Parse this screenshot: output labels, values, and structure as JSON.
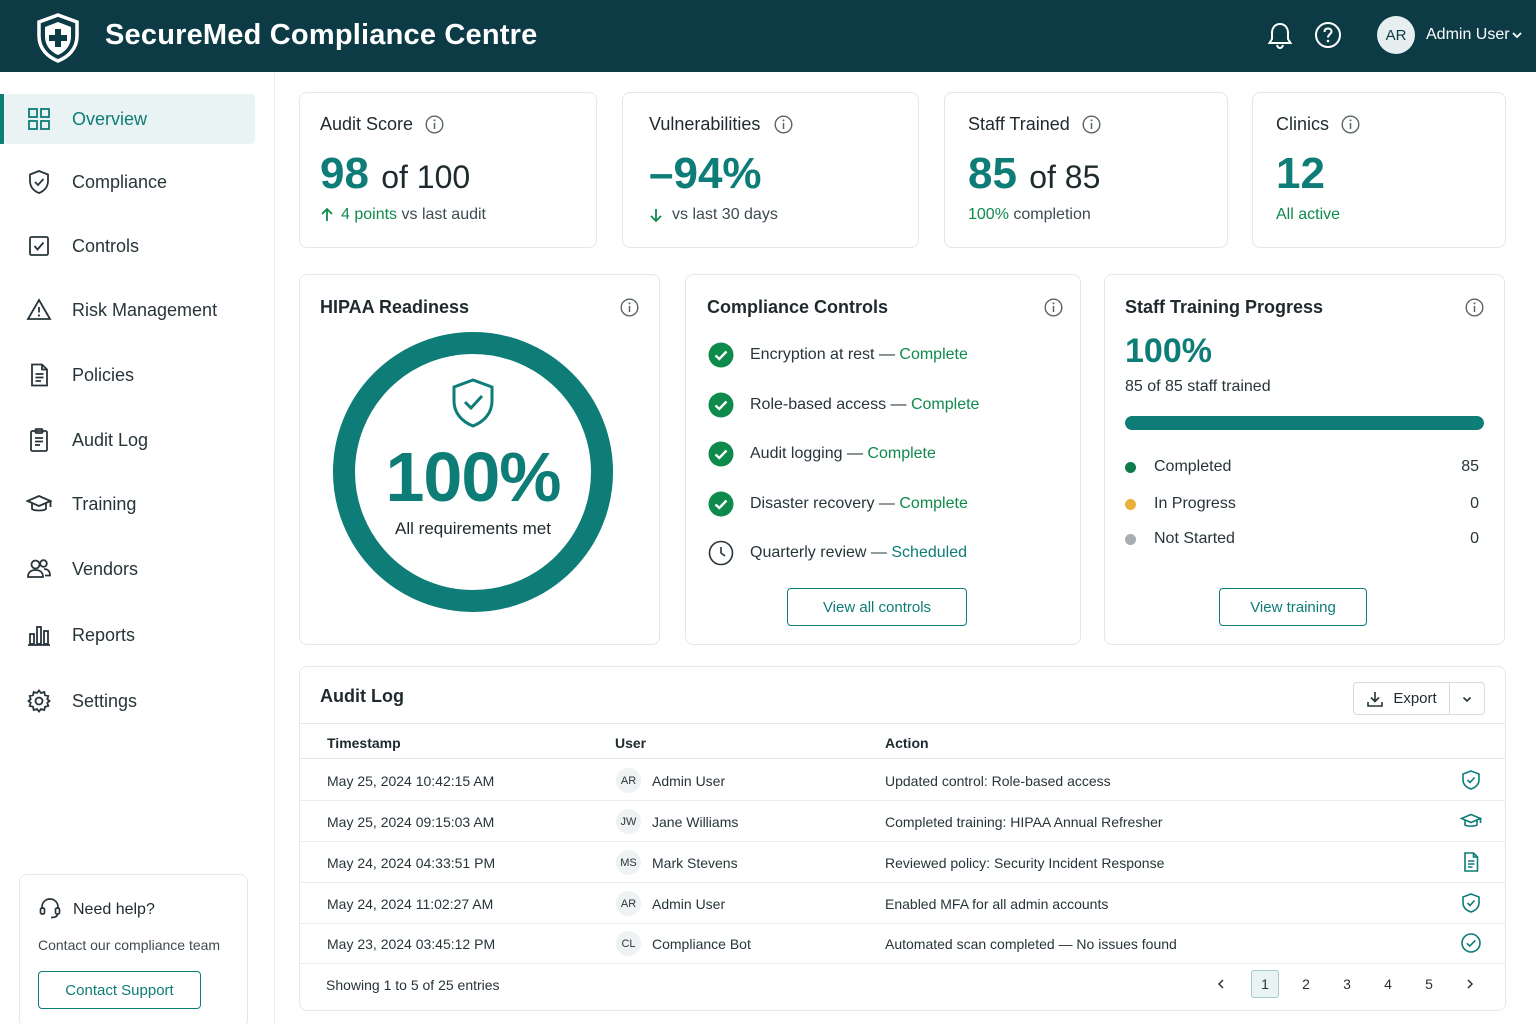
{
  "header": {
    "title": "SecureMed Compliance Centre",
    "user_initials": "AR",
    "user_name": "Admin User"
  },
  "sidebar": {
    "items": [
      {
        "label": "Overview",
        "icon": "grid-icon",
        "active": true
      },
      {
        "label": "Compliance",
        "icon": "shield-check-icon"
      },
      {
        "label": "Controls",
        "icon": "checkbox-icon"
      },
      {
        "label": "Risk Management",
        "icon": "warning-triangle-icon"
      },
      {
        "label": "Policies",
        "icon": "document-icon"
      },
      {
        "label": "Audit Log",
        "icon": "clipboard-icon"
      },
      {
        "label": "Training",
        "icon": "graduation-cap-icon"
      },
      {
        "label": "Vendors",
        "icon": "users-icon"
      },
      {
        "label": "Reports",
        "icon": "bar-chart-icon"
      },
      {
        "label": "Settings",
        "icon": "gear-icon"
      }
    ],
    "help": {
      "title": "Need help?",
      "text": "Contact our compliance team",
      "button": "Contact Support"
    }
  },
  "kpis": {
    "audit": {
      "label": "Audit Score",
      "value": "98",
      "suffix": "of 100",
      "delta": "4 points",
      "delta_text": "vs last audit"
    },
    "vuln": {
      "label": "Vulnerabilities",
      "value": "–94%",
      "delta_text": "vs last 30 days"
    },
    "staff": {
      "label": "Staff Trained",
      "value": "85",
      "suffix": "of 85",
      "highlight": "100%",
      "sub_text": "completion"
    },
    "clinics": {
      "label": "Clinics",
      "value": "12",
      "sub": "All active"
    }
  },
  "hipaa": {
    "title": "HIPAA Readiness",
    "percent": "100%",
    "caption": "All requirements met",
    "progress": 1.0
  },
  "controls": {
    "title": "Compliance Controls",
    "items": [
      {
        "name": "Encryption at rest",
        "sep": " — ",
        "status": "Complete",
        "state": "done"
      },
      {
        "name": "Role-based access",
        "sep": " — ",
        "status": "Complete",
        "state": "done"
      },
      {
        "name": "Audit logging",
        "sep": " — ",
        "status": "Complete",
        "state": "done"
      },
      {
        "name": "Disaster recovery",
        "sep": " — ",
        "status": "Complete",
        "state": "done"
      },
      {
        "name": "Quarterly review",
        "sep": " — ",
        "status": "Scheduled",
        "state": "scheduled"
      }
    ],
    "button": "View all controls"
  },
  "training": {
    "title": "Staff Training Progress",
    "percent": "100%",
    "subtitle": "85 of 85 staff trained",
    "progress": 1.0,
    "legend": [
      {
        "label": "Completed",
        "value": "85",
        "color": "#0e7c4a"
      },
      {
        "label": "In Progress",
        "value": "0",
        "color": "#e8b23a"
      },
      {
        "label": "Not Started",
        "value": "0",
        "color": "#a7adb0"
      }
    ],
    "button": "View training"
  },
  "audit_log": {
    "title": "Audit Log",
    "export_label": "Export",
    "columns": [
      "Timestamp",
      "User",
      "Action"
    ],
    "rows": [
      {
        "timestamp": "May 25, 2024 10:42:15 AM",
        "initials": "AR",
        "user": "Admin User",
        "action": "Updated control: Role-based access",
        "icon": "shield-check-icon"
      },
      {
        "timestamp": "May 25, 2024 09:15:03 AM",
        "initials": "JW",
        "user": "Jane Williams",
        "action": "Completed training: HIPAA Annual Refresher",
        "icon": "graduation-cap-icon"
      },
      {
        "timestamp": "May 24, 2024 04:33:51 PM",
        "initials": "MS",
        "user": "Mark Stevens",
        "action": "Reviewed policy: Security Incident Response",
        "icon": "document-icon"
      },
      {
        "timestamp": "May 24, 2024 11:02:27 AM",
        "initials": "AR",
        "user": "Admin User",
        "action": "Enabled MFA for all admin accounts",
        "icon": "shield-check-icon"
      },
      {
        "timestamp": "May 23, 2024 03:45:12 PM",
        "initials": "CL",
        "user": "Compliance Bot",
        "action": "Automated scan completed — No issues found",
        "icon": "check-circle-icon"
      }
    ],
    "footer": "Showing 1 to 5 of 25 entries",
    "pages": [
      "1",
      "2",
      "3",
      "4",
      "5"
    ],
    "current_page": "1"
  },
  "colors": {
    "brand_dark": "#0d3b45",
    "accent": "#0e7c77",
    "success": "#0e8a4a"
  }
}
